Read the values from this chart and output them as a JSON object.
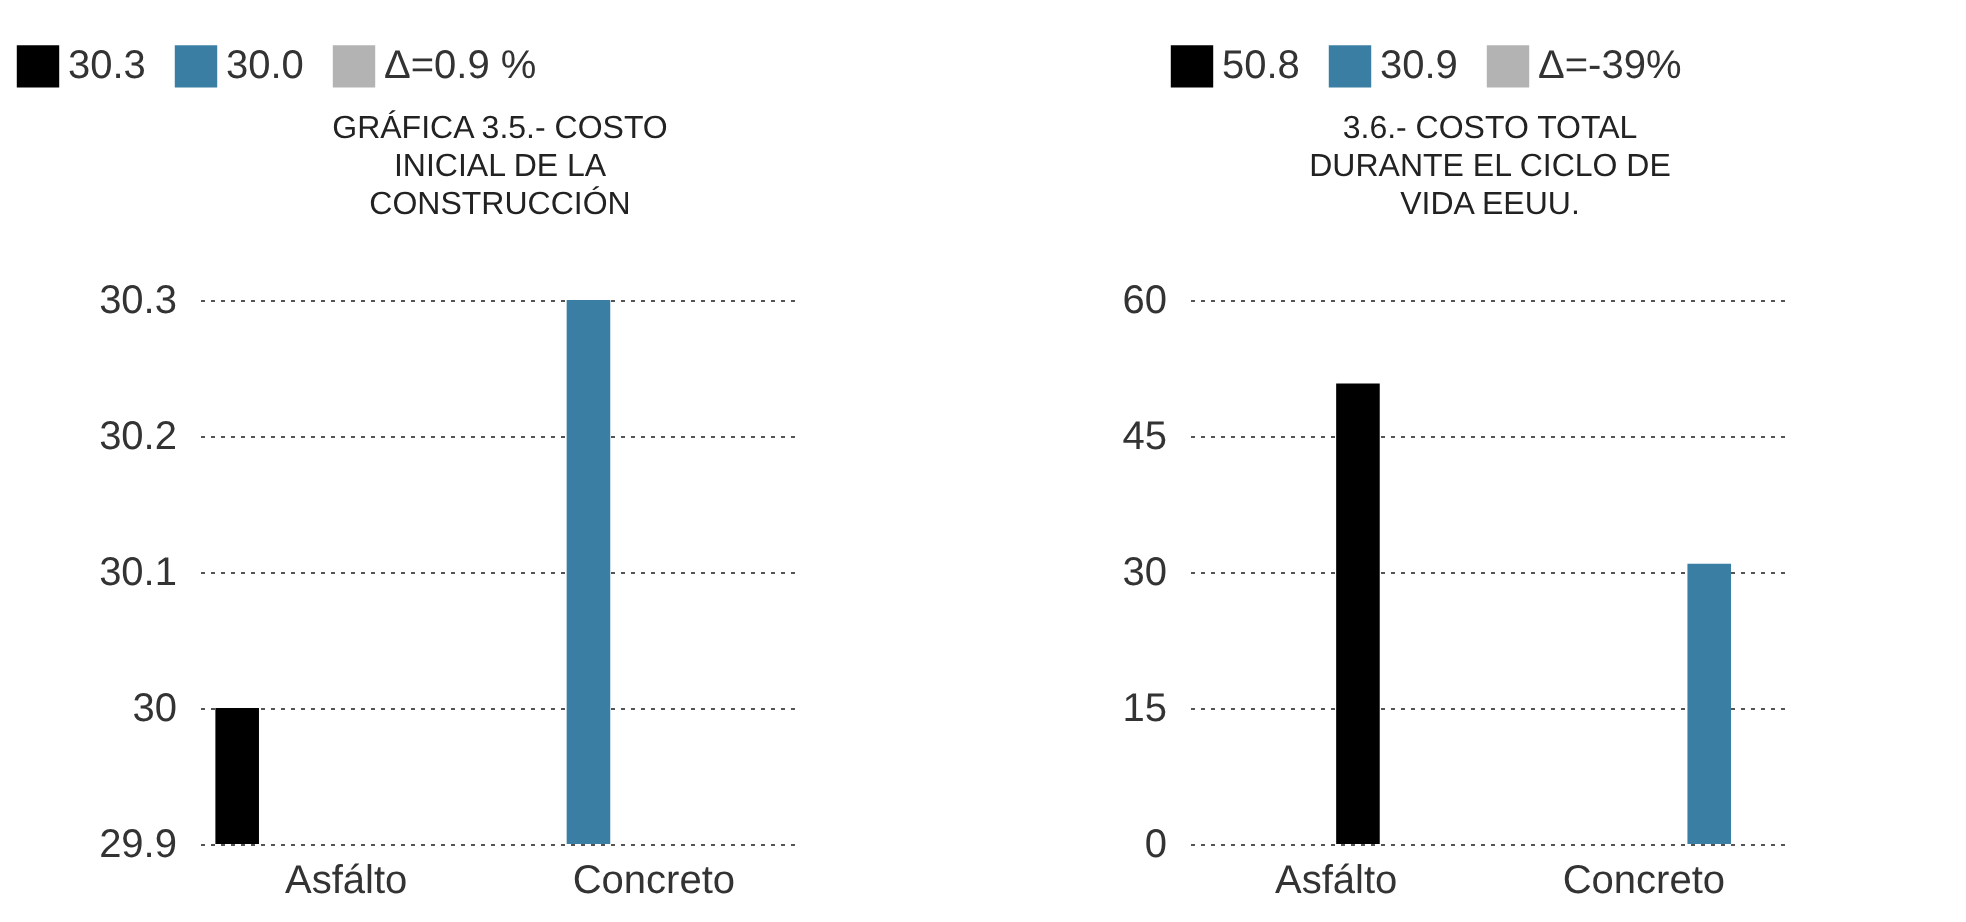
{
  "chart_data": [
    {
      "type": "bar",
      "title": "GRÁFICA 3.5.- COSTO INICIAL DE LA CONSTRUCCIÓN",
      "categories": [
        "Asfálto",
        "Concreto"
      ],
      "series": [
        {
          "name": "30.3",
          "color": "#000000",
          "values": [
            30.0,
            null
          ]
        },
        {
          "name": "30.0",
          "color": "#3a7fa3",
          "values": [
            null,
            30.3
          ]
        },
        {
          "name": "Δ=0.9 %",
          "color": "#b3b3b3",
          "values": [
            null,
            null
          ]
        }
      ],
      "ylim": [
        29.9,
        30.3
      ],
      "yticks": [
        29.9,
        {
          "value": 30,
          "label": "30"
        },
        30.1,
        30.2,
        30.3
      ],
      "grid": "y",
      "legend": "top"
    },
    {
      "type": "bar",
      "title": "3.6.- COSTO TOTAL DURANTE EL CICLO DE VIDA EEUU.",
      "categories": [
        "Asfálto",
        "Concreto"
      ],
      "series": [
        {
          "name": "50.8",
          "color": "#000000",
          "values": [
            50.8,
            null
          ]
        },
        {
          "name": "30.9",
          "color": "#3a7fa3",
          "values": [
            null,
            30.9
          ]
        },
        {
          "name": "Δ=-39%",
          "color": "#b3b3b3",
          "values": [
            null,
            null
          ]
        }
      ],
      "ylim": [
        0,
        60
      ],
      "yticks": [
        0,
        15,
        30,
        45,
        60
      ],
      "grid": "y",
      "legend": "top"
    }
  ]
}
